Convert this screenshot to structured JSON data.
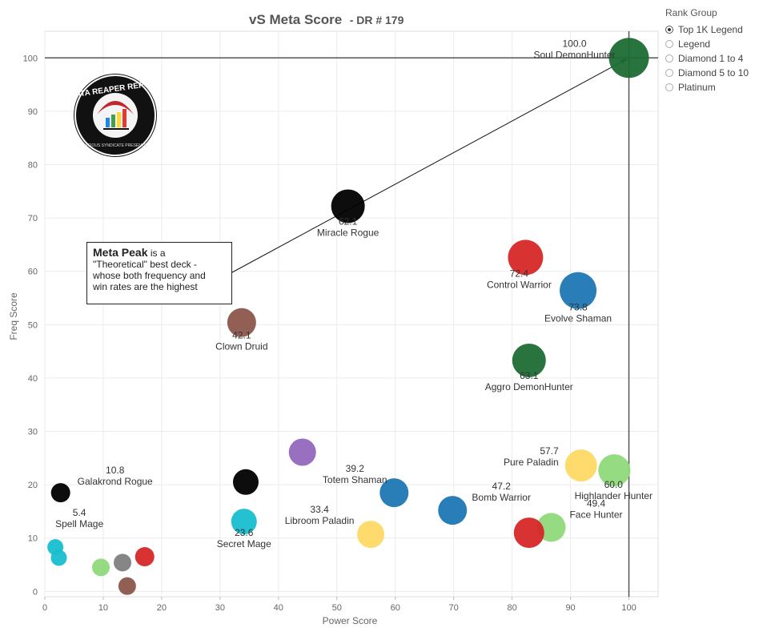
{
  "title": {
    "main": "vS Meta Score",
    "sub": "- DR # 179"
  },
  "legend": {
    "title": "Rank Group",
    "items": [
      {
        "label": "Top 1K Legend",
        "selected": true
      },
      {
        "label": "Legend",
        "selected": false
      },
      {
        "label": "Diamond 1 to 4",
        "selected": false
      },
      {
        "label": "Diamond 5 to 10",
        "selected": false
      },
      {
        "label": "Platinum",
        "selected": false
      }
    ]
  },
  "annotation": {
    "head": "Meta Peak",
    "text_after_head": " is a",
    "lines": [
      "\"Theoretical\" best deck -",
      "whose both frequency and",
      "win rates are the highest"
    ]
  },
  "logo": {
    "text_top": "DATA REAPER REPORT",
    "text_bottom": "VICIOUS SYNDICATE PRESENTS"
  },
  "chart_data": {
    "type": "scatter",
    "title": "vS Meta Score - DR # 179",
    "xlabel": "Power Score",
    "ylabel": "Freq Score",
    "xlim": [
      0,
      105
    ],
    "ylim": [
      -1,
      105
    ],
    "xticks": [
      0,
      10,
      20,
      30,
      40,
      50,
      60,
      70,
      80,
      90,
      100
    ],
    "yticks": [
      0,
      10,
      20,
      30,
      40,
      50,
      60,
      70,
      80,
      90,
      100
    ],
    "grid": true,
    "reference_lines": {
      "x": 100,
      "y": 100
    },
    "points": [
      {
        "x": 100,
        "y": 100,
        "score": "100.0",
        "name": "Soul DemonHunter",
        "color": "#1e6b35",
        "r": 25
      },
      {
        "x": 51.9,
        "y": 72.2,
        "score": "62.1",
        "name": "Miracle Rogue",
        "color": "#000000",
        "r": 21
      },
      {
        "x": 82.3,
        "y": 62.6,
        "score": "72.4",
        "name": "Control Warrior",
        "color": "#d62728",
        "r": 22
      },
      {
        "x": 91.3,
        "y": 56.4,
        "score": "73.8",
        "name": "Evolve Shaman",
        "color": "#1f77b4",
        "r": 23
      },
      {
        "x": 33.7,
        "y": 50.4,
        "score": "42.1",
        "name": "Clown Druid",
        "color": "#8c564b",
        "r": 18
      },
      {
        "x": 82.9,
        "y": 43.3,
        "score": "63.1",
        "name": "Aggro DemonHunter",
        "color": "#1e6b35",
        "r": 21
      },
      {
        "x": 44.1,
        "y": 26.1,
        "score": "",
        "name": "",
        "color": "#9467bd",
        "r": 17
      },
      {
        "x": 91.8,
        "y": 23.6,
        "score": "57.7",
        "name": "Pure Paladin",
        "color": "#ffd966",
        "r": 20
      },
      {
        "x": 97.5,
        "y": 22.7,
        "score": "60.0",
        "name": "Highlander Hunter",
        "color": "#8fd97a",
        "r": 20
      },
      {
        "x": 34.4,
        "y": 20.5,
        "score": "",
        "name": "",
        "color": "#000000",
        "r": 16
      },
      {
        "x": 2.7,
        "y": 18.5,
        "score": "10.8",
        "name": "Galakrond Rogue",
        "color": "#000000",
        "r": 12
      },
      {
        "x": 59.8,
        "y": 18.5,
        "score": "39.2",
        "name": "Totem Shaman",
        "color": "#1f77b4",
        "r": 18
      },
      {
        "x": 69.8,
        "y": 15.2,
        "score": "47.2",
        "name": "Bomb Warrior",
        "color": "#1f77b4",
        "r": 18
      },
      {
        "x": 34.1,
        "y": 13.1,
        "score": "23.6",
        "name": "Secret Mage",
        "color": "#17becf",
        "r": 16
      },
      {
        "x": 86.7,
        "y": 12.0,
        "score": "49.4",
        "name": "Face Hunter",
        "color": "#8fd97a",
        "r": 18
      },
      {
        "x": 82.9,
        "y": 11.0,
        "score": "",
        "name": "",
        "color": "#d62728",
        "r": 19
      },
      {
        "x": 55.8,
        "y": 10.7,
        "score": "33.4",
        "name": "Libroom Paladin",
        "color": "#ffd966",
        "r": 17
      },
      {
        "x": 1.8,
        "y": 8.3,
        "score": "5.4",
        "name": "Spell Mage",
        "color": "#17becf",
        "r": 10
      },
      {
        "x": 2.4,
        "y": 6.3,
        "score": "",
        "name": "",
        "color": "#17becf",
        "r": 10
      },
      {
        "x": 17.1,
        "y": 6.5,
        "score": "",
        "name": "",
        "color": "#d62728",
        "r": 12
      },
      {
        "x": 13.3,
        "y": 5.4,
        "score": "",
        "name": "",
        "color": "#7f7f7f",
        "r": 11
      },
      {
        "x": 9.6,
        "y": 4.5,
        "score": "",
        "name": "",
        "color": "#8fd97a",
        "r": 11
      },
      {
        "x": 14.1,
        "y": 1.0,
        "score": "",
        "name": "",
        "color": "#8c564b",
        "r": 11
      }
    ]
  }
}
